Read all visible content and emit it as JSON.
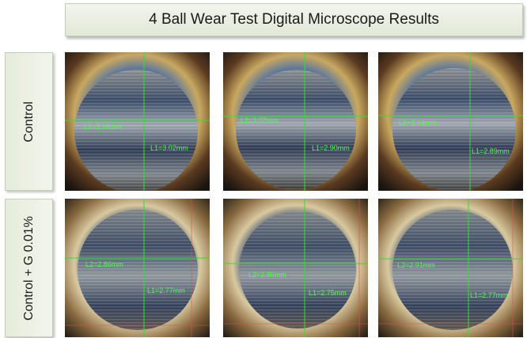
{
  "title": "4 Ball Wear Test Digital Microscope Results",
  "rows": [
    {
      "label": "Control",
      "images": [
        {
          "l1": "L1=3.02mm",
          "l2": "L2=3.16mm"
        },
        {
          "l1": "L1=2.90mm",
          "l2": "L2=3.07mm"
        },
        {
          "l1": "L1=2.89mm",
          "l2": "L2=3.04mm"
        }
      ]
    },
    {
      "label": "Control + G 0.01%",
      "images": [
        {
          "l1": "L1=2.77mm",
          "l2": "L2=2.86mm"
        },
        {
          "l1": "L1=2.75mm",
          "l2": "L2=2.86mm"
        },
        {
          "l1": "L1=2.77mm",
          "l2": "L2=2.91mm"
        }
      ]
    }
  ]
}
